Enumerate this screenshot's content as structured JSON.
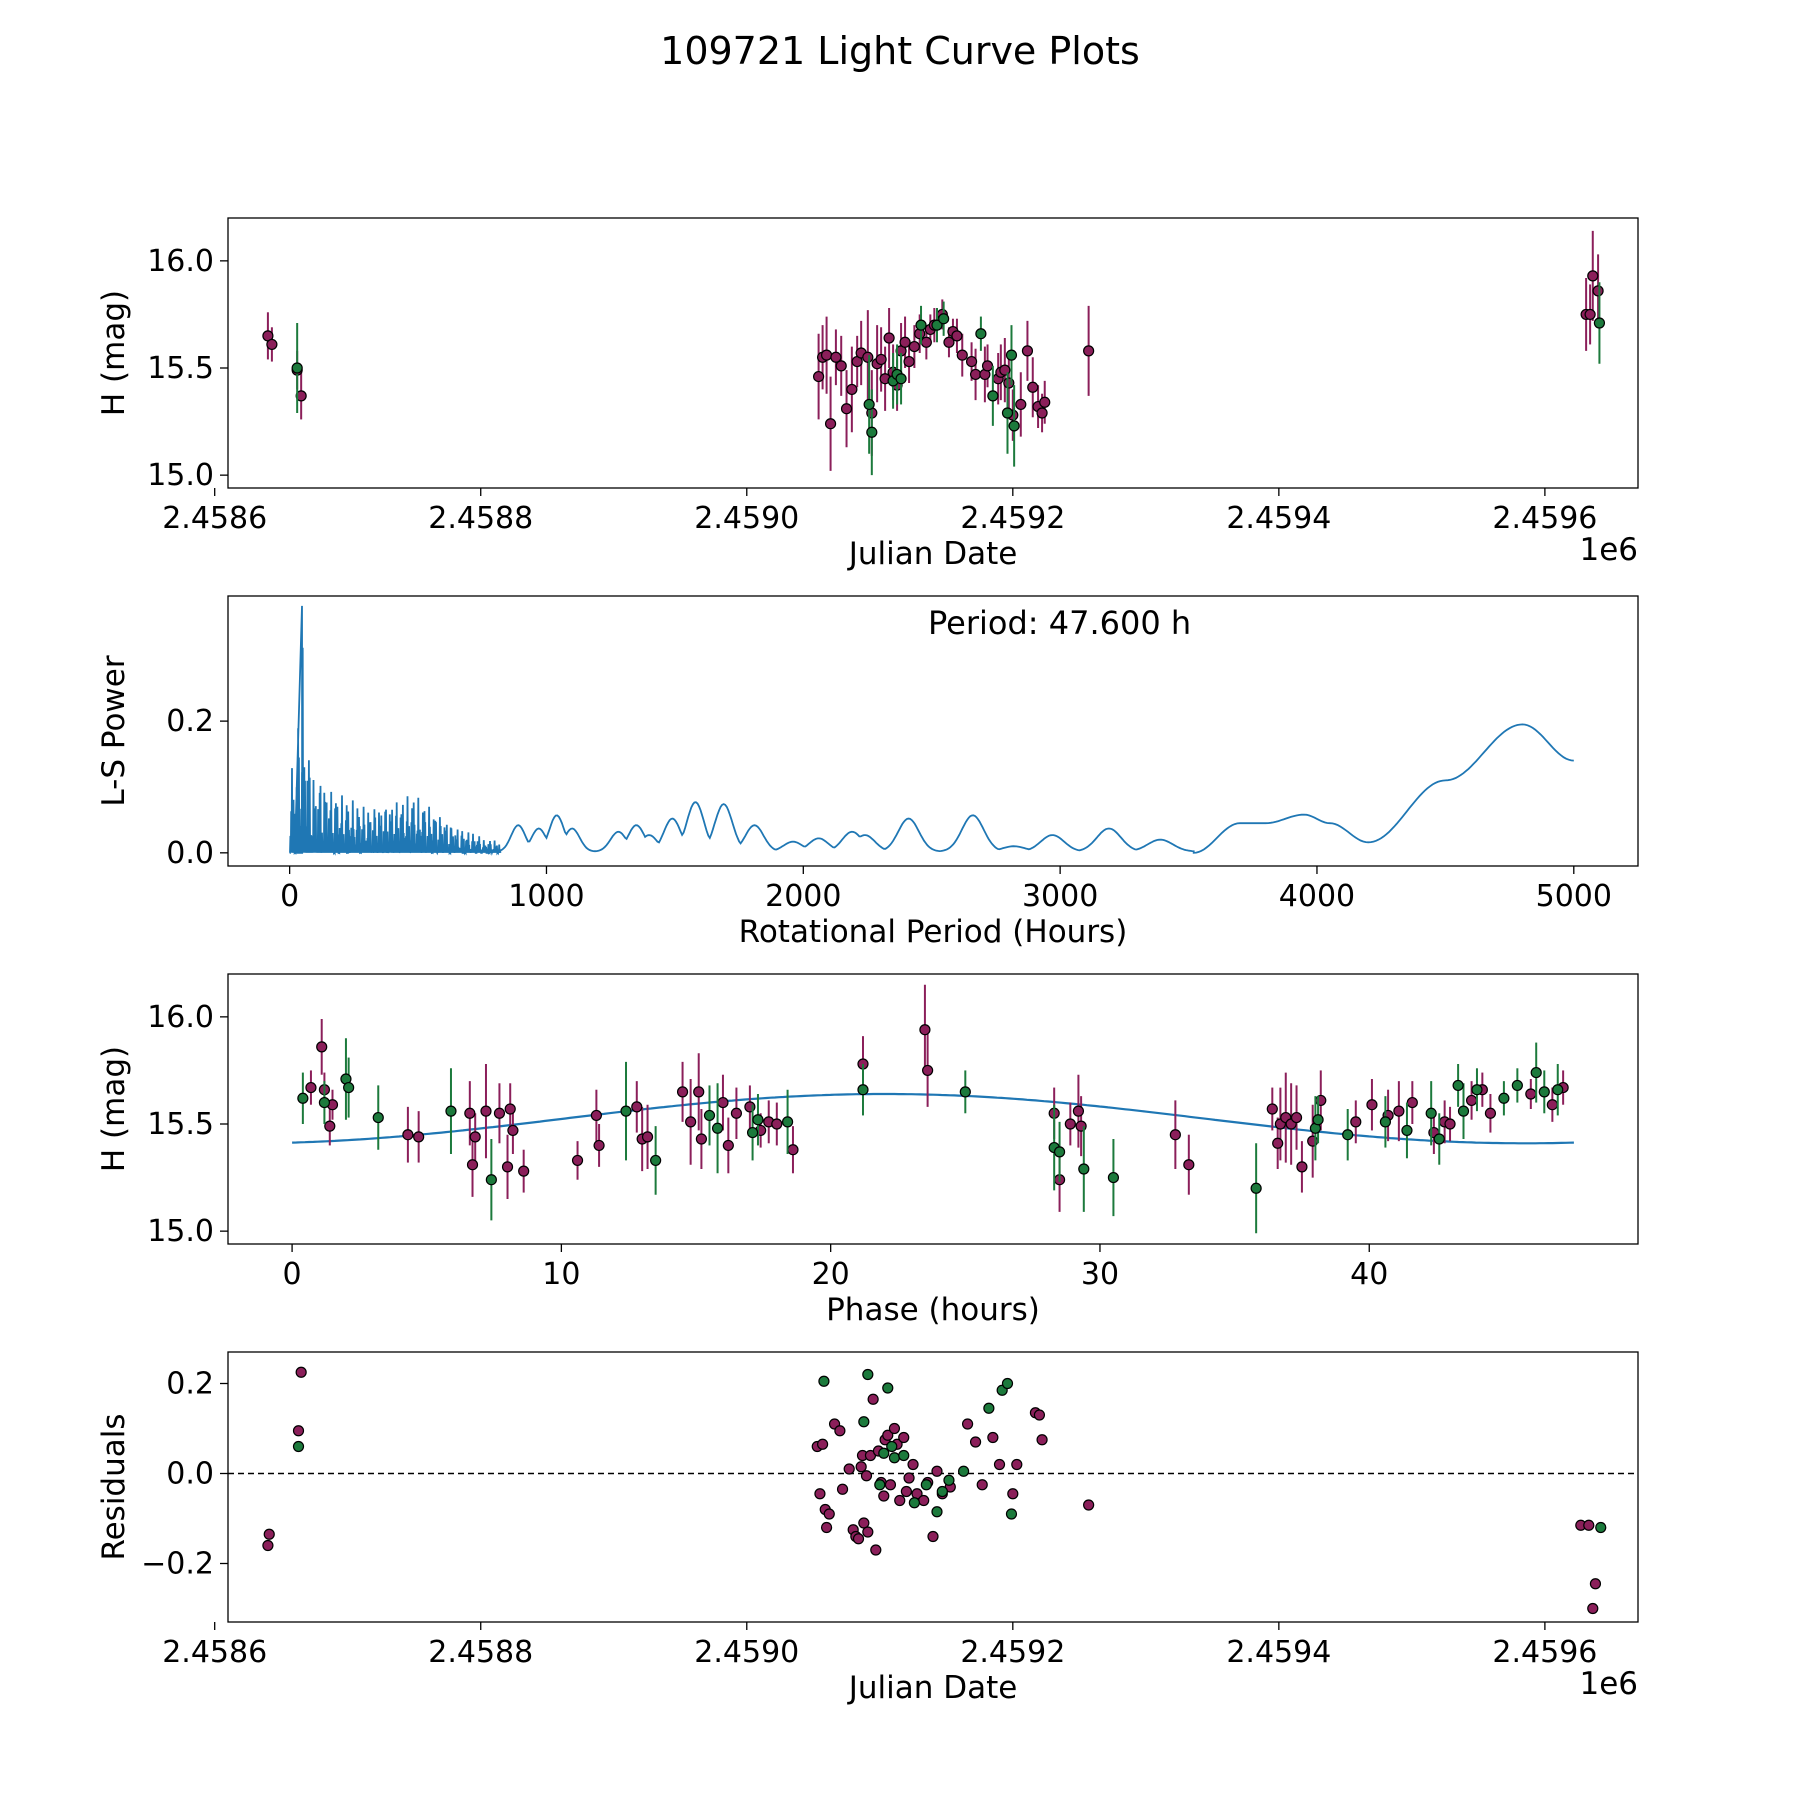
{
  "figure": {
    "title": "109721 Light Curve Plots",
    "colors": {
      "purple": "#8b1f5a",
      "green": "#1c7a3c",
      "curve": "#1f77b4",
      "edge": "#000000"
    }
  },
  "chart_data": [
    {
      "id": "lightcurve",
      "type": "scatter",
      "xlabel": "Julian Date",
      "ylabel": "H (mag)",
      "offset_text": "1e6",
      "xlim": [
        2.45861,
        2.45967
      ],
      "ylim": [
        14.94,
        16.2
      ],
      "xticks": [
        2.4586,
        2.4588,
        2.459,
        2.4592,
        2.4594,
        2.4596
      ],
      "xtick_labels": [
        "2.4586",
        "2.4588",
        "2.4590",
        "2.4592",
        "2.4594",
        "2.4596"
      ],
      "yticks": [
        15.0,
        15.5,
        16.0
      ],
      "ytick_labels": [
        "15.0",
        "15.5",
        "16.0"
      ],
      "series": [
        {
          "name": "purple",
          "color": "#8b1f5a",
          "x": [
            2.45864,
            2.458643,
            2.458662,
            2.458665,
            2.459054,
            2.459057,
            2.45906,
            2.459063,
            2.459067,
            2.459071,
            2.459075,
            2.459079,
            2.459083,
            2.459086,
            2.459091,
            2.459094,
            2.459098,
            2.459101,
            2.459104,
            2.459107,
            2.45911,
            2.459113,
            2.459116,
            2.459119,
            2.459122,
            2.459126,
            2.45913,
            2.459135,
            2.459138,
            2.459141,
            2.459147,
            2.459152,
            2.459155,
            2.459158,
            2.459162,
            2.459169,
            2.459172,
            2.459179,
            2.459181,
            2.459189,
            2.459191,
            2.459194,
            2.459197,
            2.4592,
            2.459206,
            2.459211,
            2.459215,
            2.459219,
            2.459222,
            2.459224,
            2.459257,
            2.459631,
            2.459634,
            2.459636,
            2.45964
          ],
          "y": [
            15.65,
            15.61,
            15.49,
            15.37,
            15.46,
            15.55,
            15.56,
            15.24,
            15.55,
            15.51,
            15.31,
            15.4,
            15.53,
            15.57,
            15.55,
            15.29,
            15.52,
            15.54,
            15.45,
            15.64,
            15.48,
            15.42,
            15.58,
            15.62,
            15.53,
            15.6,
            15.66,
            15.62,
            15.68,
            15.7,
            15.75,
            15.62,
            15.67,
            15.65,
            15.56,
            15.53,
            15.47,
            15.47,
            15.51,
            15.45,
            15.48,
            15.49,
            15.43,
            15.28,
            15.33,
            15.58,
            15.41,
            15.32,
            15.29,
            15.34,
            15.58,
            15.75,
            15.75,
            15.93,
            15.86
          ],
          "err": [
            0.11,
            0.08,
            0.09,
            0.11,
            0.2,
            0.15,
            0.18,
            0.22,
            0.13,
            0.14,
            0.18,
            0.2,
            0.12,
            0.15,
            0.22,
            0.2,
            0.18,
            0.15,
            0.15,
            0.14,
            0.13,
            0.12,
            0.13,
            0.12,
            0.1,
            0.1,
            0.09,
            0.08,
            0.07,
            0.08,
            0.07,
            0.07,
            0.06,
            0.08,
            0.1,
            0.09,
            0.12,
            0.13,
            0.1,
            0.12,
            0.13,
            0.15,
            0.13,
            0.12,
            0.15,
            0.14,
            0.14,
            0.1,
            0.09,
            0.1,
            0.21,
            0.17,
            0.14,
            0.21,
            0.17
          ]
        },
        {
          "name": "green",
          "color": "#1c7a3c",
          "x": [
            2.458662,
            2.459092,
            2.459094,
            2.45911,
            2.459113,
            2.459116,
            2.459131,
            2.459143,
            2.459148,
            2.459176,
            2.459185,
            2.459196,
            2.459199,
            2.459201,
            2.459641
          ],
          "y": [
            15.5,
            15.33,
            15.2,
            15.44,
            15.47,
            15.45,
            15.7,
            15.7,
            15.73,
            15.66,
            15.37,
            15.29,
            15.56,
            15.23,
            15.71
          ],
          "err": [
            0.21,
            0.23,
            0.2,
            0.13,
            0.14,
            0.12,
            0.09,
            0.08,
            0.08,
            0.08,
            0.14,
            0.19,
            0.14,
            0.19,
            0.19
          ]
        }
      ]
    },
    {
      "id": "periodogram",
      "type": "line",
      "xlabel": "Rotational Period (Hours)",
      "ylabel": "L-S Power",
      "annotation": "Period: 47.600 h",
      "xlim": [
        -240,
        5250
      ],
      "ylim": [
        -0.02,
        0.39
      ],
      "xticks": [
        0,
        1000,
        2000,
        3000,
        4000,
        5000
      ],
      "xtick_labels": [
        "0",
        "1000",
        "2000",
        "3000",
        "4000",
        "5000"
      ],
      "yticks": [
        0.0,
        0.2
      ],
      "ytick_labels": [
        "0.0",
        "0.2"
      ],
      "peaks": [
        [
          890,
          0.04
        ],
        [
          970,
          0.035
        ],
        [
          1040,
          0.055
        ],
        [
          1100,
          0.035
        ],
        [
          1280,
          0.03
        ],
        [
          1350,
          0.04
        ],
        [
          1400,
          0.025
        ],
        [
          1490,
          0.05
        ],
        [
          1580,
          0.075
        ],
        [
          1690,
          0.072
        ],
        [
          1810,
          0.04
        ],
        [
          1960,
          0.015
        ],
        [
          2060,
          0.02
        ],
        [
          2190,
          0.03
        ],
        [
          2240,
          0.025
        ],
        [
          2410,
          0.05
        ],
        [
          2660,
          0.055
        ],
        [
          2820,
          0.008
        ],
        [
          2970,
          0.025
        ],
        [
          3190,
          0.035
        ],
        [
          3390,
          0.018
        ]
      ],
      "envelope": [
        [
          3520,
          0.0
        ],
        [
          3700,
          0.045
        ],
        [
          3800,
          0.045
        ],
        [
          3950,
          0.058
        ],
        [
          4050,
          0.045
        ],
        [
          4200,
          0.016
        ],
        [
          4500,
          0.11
        ],
        [
          4800,
          0.195
        ],
        [
          5000,
          0.14
        ]
      ],
      "spikes": [
        [
          20,
          0.135
        ],
        [
          30,
          0.17
        ],
        [
          48,
          0.375
        ],
        [
          60,
          0.2
        ],
        [
          80,
          0.15
        ],
        [
          100,
          0.11
        ],
        [
          120,
          0.12
        ],
        [
          160,
          0.1
        ],
        [
          220,
          0.085
        ],
        [
          300,
          0.07
        ],
        [
          400,
          0.08
        ],
        [
          480,
          0.09
        ],
        [
          550,
          0.07
        ],
        [
          650,
          0.04
        ],
        [
          750,
          0.025
        ]
      ]
    },
    {
      "id": "phased",
      "type": "scatter",
      "xlabel": "Phase (hours)",
      "ylabel": "H (mag)",
      "xlim": [
        -2.38,
        49.98
      ],
      "ylim": [
        14.94,
        16.2
      ],
      "xticks": [
        0,
        10,
        20,
        30,
        40
      ],
      "xtick_labels": [
        "0",
        "10",
        "20",
        "30",
        "40"
      ],
      "yticks": [
        15.0,
        15.5,
        16.0
      ],
      "ytick_labels": [
        "15.0",
        "15.5",
        "16.0"
      ],
      "fit": {
        "period": 47.6,
        "mean": 15.525,
        "amp": 0.115,
        "phase_peak": 22.0
      },
      "series": [
        {
          "name": "purple",
          "color": "#8b1f5a",
          "x": [
            0.7,
            1.1,
            1.2,
            1.4,
            1.5,
            4.3,
            4.7,
            6.6,
            6.7,
            6.8,
            7.2,
            7.7,
            8.0,
            8.1,
            8.2,
            8.6,
            10.6,
            11.3,
            11.4,
            12.8,
            13.0,
            13.2,
            14.5,
            14.8,
            15.1,
            15.2,
            16.0,
            16.2,
            16.5,
            17.0,
            17.4,
            17.7,
            18.0,
            18.6,
            21.2,
            23.5,
            23.6,
            28.3,
            28.5,
            28.9,
            29.2,
            29.3,
            32.8,
            33.3,
            36.4,
            36.6,
            36.7,
            36.9,
            37.1,
            37.3,
            37.5,
            37.9,
            38.2,
            39.5,
            40.1,
            40.7,
            41.1,
            41.6,
            42.4,
            42.8,
            43.0,
            43.8,
            44.2,
            44.5,
            46.0,
            46.8,
            47.2
          ],
          "y": [
            15.67,
            15.86,
            15.66,
            15.49,
            15.59,
            15.45,
            15.44,
            15.55,
            15.31,
            15.44,
            15.56,
            15.55,
            15.3,
            15.57,
            15.47,
            15.28,
            15.33,
            15.54,
            15.4,
            15.58,
            15.43,
            15.44,
            15.65,
            15.51,
            15.65,
            15.43,
            15.6,
            15.4,
            15.55,
            15.58,
            15.47,
            15.51,
            15.5,
            15.38,
            15.78,
            15.94,
            15.75,
            15.55,
            15.24,
            15.5,
            15.56,
            15.49,
            15.45,
            15.31,
            15.57,
            15.41,
            15.5,
            15.53,
            15.5,
            15.53,
            15.3,
            15.42,
            15.61,
            15.51,
            15.59,
            15.54,
            15.56,
            15.6,
            15.46,
            15.51,
            15.5,
            15.61,
            15.66,
            15.55,
            15.64,
            15.59,
            15.67
          ],
          "err": [
            0.08,
            0.13,
            0.08,
            0.09,
            0.07,
            0.13,
            0.12,
            0.15,
            0.15,
            0.11,
            0.22,
            0.14,
            0.15,
            0.12,
            0.11,
            0.1,
            0.09,
            0.12,
            0.1,
            0.12,
            0.15,
            0.15,
            0.14,
            0.2,
            0.18,
            0.14,
            0.13,
            0.13,
            0.12,
            0.1,
            0.08,
            0.1,
            0.1,
            0.11,
            0.13,
            0.21,
            0.17,
            0.12,
            0.15,
            0.1,
            0.17,
            0.14,
            0.16,
            0.14,
            0.1,
            0.12,
            0.17,
            0.21,
            0.19,
            0.15,
            0.12,
            0.17,
            0.14,
            0.1,
            0.12,
            0.12,
            0.14,
            0.1,
            0.1,
            0.1,
            0.08,
            0.09,
            0.08,
            0.09,
            0.07,
            0.08,
            0.08
          ]
        },
        {
          "name": "green",
          "color": "#1c7a3c",
          "x": [
            0.4,
            1.2,
            2.0,
            2.1,
            3.2,
            5.9,
            7.4,
            12.4,
            13.5,
            15.5,
            15.8,
            17.1,
            17.3,
            18.4,
            21.2,
            25.0,
            28.3,
            28.5,
            29.4,
            30.5,
            35.8,
            38.0,
            38.1,
            39.2,
            40.6,
            41.4,
            42.3,
            42.6,
            43.3,
            43.5,
            44.0,
            45.0,
            45.5,
            46.2,
            46.5,
            47.0
          ],
          "y": [
            15.62,
            15.6,
            15.71,
            15.67,
            15.53,
            15.56,
            15.24,
            15.56,
            15.33,
            15.54,
            15.48,
            15.46,
            15.52,
            15.51,
            15.66,
            15.65,
            15.39,
            15.37,
            15.29,
            15.25,
            15.2,
            15.48,
            15.52,
            15.45,
            15.51,
            15.47,
            15.55,
            15.43,
            15.68,
            15.56,
            15.66,
            15.62,
            15.68,
            15.74,
            15.65,
            15.66
          ],
          "err": [
            0.12,
            0.1,
            0.19,
            0.14,
            0.15,
            0.2,
            0.19,
            0.23,
            0.16,
            0.14,
            0.21,
            0.13,
            0.12,
            0.15,
            0.12,
            0.1,
            0.2,
            0.14,
            0.2,
            0.18,
            0.21,
            0.15,
            0.11,
            0.12,
            0.12,
            0.13,
            0.15,
            0.12,
            0.1,
            0.13,
            0.1,
            0.08,
            0.08,
            0.14,
            0.1,
            0.12
          ]
        }
      ]
    },
    {
      "id": "residuals",
      "type": "scatter",
      "xlabel": "Julian Date",
      "ylabel": "Residuals",
      "offset_text": "1e6",
      "xlim": [
        2.45861,
        2.45967
      ],
      "ylim": [
        -0.33,
        0.27
      ],
      "xticks": [
        2.4586,
        2.4588,
        2.459,
        2.4592,
        2.4594,
        2.4596
      ],
      "xtick_labels": [
        "2.4586",
        "2.4588",
        "2.4590",
        "2.4592",
        "2.4594",
        "2.4596"
      ],
      "yticks": [
        -0.2,
        0.0,
        0.2
      ],
      "ytick_labels": [
        "−0.2",
        "0.0",
        "0.2"
      ],
      "series": [
        {
          "name": "purple",
          "color": "#8b1f5a",
          "x": [
            2.45864,
            2.458641,
            2.458663,
            2.458665,
            2.459053,
            2.459055,
            2.459057,
            2.459059,
            2.45906,
            2.459062,
            2.459066,
            2.45907,
            2.459072,
            2.459077,
            2.45908,
            2.459082,
            2.459084,
            2.459086,
            2.459087,
            2.459088,
            2.45909,
            2.459091,
            2.459093,
            2.459095,
            2.459097,
            2.459099,
            2.459101,
            2.459103,
            2.459104,
            2.459106,
            2.459108,
            2.459111,
            2.459113,
            2.459115,
            2.459118,
            2.45912,
            2.459122,
            2.459125,
            2.459128,
            2.459133,
            2.459136,
            2.45914,
            2.459143,
            2.459147,
            2.459153,
            2.459166,
            2.459172,
            2.459177,
            2.459185,
            2.45919,
            2.4592,
            2.459203,
            2.459217,
            2.45922,
            2.459222,
            2.459257,
            2.459627,
            2.459633,
            2.459636,
            2.459638
          ],
          "y": [
            -0.16,
            -0.135,
            0.095,
            0.225,
            0.06,
            -0.045,
            0.065,
            -0.08,
            -0.12,
            -0.09,
            0.11,
            0.095,
            -0.035,
            0.01,
            -0.125,
            -0.14,
            -0.145,
            0.015,
            0.04,
            -0.11,
            -0.005,
            -0.13,
            0.04,
            0.165,
            -0.17,
            0.05,
            -0.02,
            -0.05,
            0.075,
            0.085,
            -0.025,
            0.1,
            0.065,
            -0.06,
            0.08,
            -0.04,
            -0.01,
            0.02,
            -0.045,
            -0.06,
            -0.02,
            -0.14,
            0.005,
            -0.045,
            -0.03,
            0.11,
            0.07,
            -0.025,
            0.08,
            0.02,
            -0.045,
            0.02,
            0.135,
            0.13,
            0.075,
            -0.07,
            -0.115,
            -0.115,
            -0.3,
            -0.245
          ],
          "err": []
        },
        {
          "name": "green",
          "color": "#1c7a3c",
          "x": [
            2.458663,
            2.459058,
            2.459088,
            2.459091,
            2.4591,
            2.459103,
            2.459106,
            2.459109,
            2.459111,
            2.459118,
            2.459126,
            2.459135,
            2.459143,
            2.459147,
            2.459152,
            2.459163,
            2.459182,
            2.459192,
            2.459196,
            2.459199,
            2.459642
          ],
          "y": [
            0.06,
            0.205,
            0.115,
            0.22,
            -0.025,
            0.045,
            0.19,
            0.06,
            0.035,
            0.04,
            -0.065,
            -0.025,
            -0.085,
            -0.04,
            -0.015,
            0.005,
            0.145,
            0.185,
            0.2,
            -0.09,
            -0.12
          ],
          "err": []
        }
      ]
    }
  ]
}
